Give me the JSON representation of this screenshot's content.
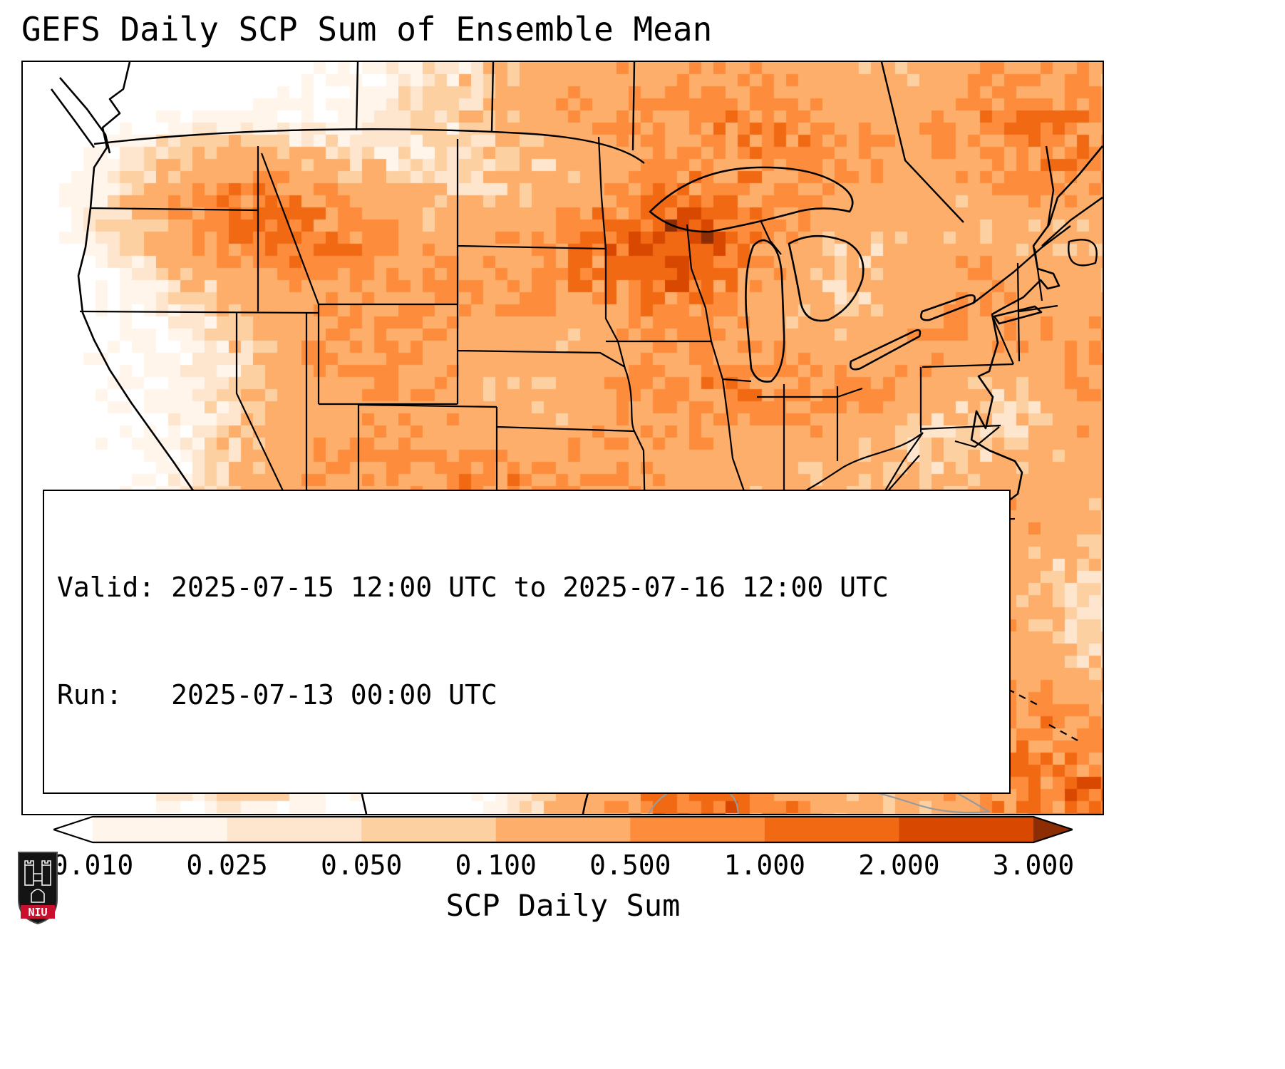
{
  "title": "GEFS Daily SCP Sum of Ensemble Mean",
  "info_box": {
    "valid_line": "Valid: 2025-07-15 12:00 UTC to 2025-07-16 12:00 UTC",
    "run_line": "Run:   2025-07-13 00:00 UTC"
  },
  "colorbar": {
    "label": "SCP Daily Sum",
    "tick_labels": [
      "0.010",
      "0.025",
      "0.050",
      "0.100",
      "0.500",
      "1.000",
      "2.000",
      "3.000"
    ],
    "levels": [
      0.01,
      0.025,
      0.05,
      0.1,
      0.5,
      1.0,
      2.0,
      3.0
    ],
    "colors": [
      "#fff5eb",
      "#fee6ce",
      "#fdd0a2",
      "#fdae6b",
      "#fd8d3c",
      "#f16913",
      "#d94801"
    ],
    "under_color": "#ffffff",
    "over_color": "#8c2d04"
  },
  "logo": {
    "text": "NIU",
    "red": "#c8102e"
  },
  "chart_data": {
    "type": "heatmap",
    "title": "GEFS Daily SCP Sum of Ensemble Mean",
    "colorbar_label": "SCP Daily Sum",
    "region": "CONUS",
    "levels": [
      0.01,
      0.025,
      0.05,
      0.1,
      0.5,
      1.0,
      2.0,
      3.0
    ],
    "valid": "2025-07-15 12:00 UTC to 2025-07-16 12:00 UTC",
    "run": "2025-07-13 00:00 UTC",
    "heat_blobs": [
      [
        0.245,
        0.225,
        0.055,
        0.045,
        1.1
      ],
      [
        0.185,
        0.185,
        0.05,
        0.04,
        0.35
      ],
      [
        0.33,
        0.38,
        0.06,
        0.05,
        0.55
      ],
      [
        0.36,
        0.52,
        0.05,
        0.05,
        0.35
      ],
      [
        0.46,
        0.28,
        0.09,
        0.05,
        0.45
      ],
      [
        0.6,
        0.25,
        0.055,
        0.055,
        1.6
      ],
      [
        0.615,
        0.235,
        0.025,
        0.03,
        0.9
      ],
      [
        0.6,
        0.05,
        0.1,
        0.06,
        0.5
      ],
      [
        0.72,
        0.13,
        0.07,
        0.06,
        0.55
      ],
      [
        0.93,
        0.07,
        0.07,
        0.07,
        0.5
      ],
      [
        0.62,
        0.42,
        0.06,
        0.05,
        0.3
      ],
      [
        0.7,
        0.45,
        0.07,
        0.05,
        0.45
      ],
      [
        0.78,
        0.42,
        0.04,
        0.04,
        0.25
      ],
      [
        0.88,
        0.33,
        0.05,
        0.06,
        0.5
      ],
      [
        0.95,
        0.12,
        0.05,
        0.06,
        0.45
      ],
      [
        0.27,
        0.67,
        0.05,
        0.07,
        0.6
      ],
      [
        0.43,
        0.62,
        0.04,
        0.07,
        0.55
      ],
      [
        0.5,
        0.6,
        0.06,
        0.05,
        0.3
      ],
      [
        0.47,
        0.76,
        0.05,
        0.06,
        0.4
      ],
      [
        0.7,
        0.77,
        0.07,
        0.045,
        1.5
      ],
      [
        0.72,
        0.78,
        0.03,
        0.02,
        0.9
      ],
      [
        0.82,
        0.8,
        0.05,
        0.06,
        0.5
      ],
      [
        0.87,
        0.72,
        0.05,
        0.06,
        0.35
      ],
      [
        0.63,
        0.995,
        0.06,
        0.025,
        1.8
      ],
      [
        0.93,
        0.93,
        0.07,
        0.07,
        0.8
      ],
      [
        0.995,
        0.995,
        0.04,
        0.04,
        1.2
      ],
      [
        0.23,
        0.78,
        0.05,
        0.07,
        0.35
      ],
      [
        0.58,
        0.55,
        0.06,
        0.05,
        0.18
      ],
      [
        0.72,
        0.6,
        0.06,
        0.04,
        0.15
      ],
      [
        1.0,
        0.42,
        0.035,
        0.09,
        0.5
      ],
      [
        0.92,
        0.6,
        0.05,
        0.05,
        0.3
      ],
      [
        0.52,
        0.47,
        0.07,
        0.06,
        0.15
      ],
      [
        0.26,
        0.5,
        0.04,
        0.05,
        0.2
      ],
      [
        0.2,
        0.88,
        0.05,
        0.05,
        0.25
      ],
      [
        0.5,
        0.87,
        0.04,
        0.04,
        0.3
      ],
      [
        0.65,
        0.45,
        0.25,
        0.2,
        0.035
      ],
      [
        0.45,
        0.45,
        0.2,
        0.25,
        0.03
      ]
    ]
  }
}
